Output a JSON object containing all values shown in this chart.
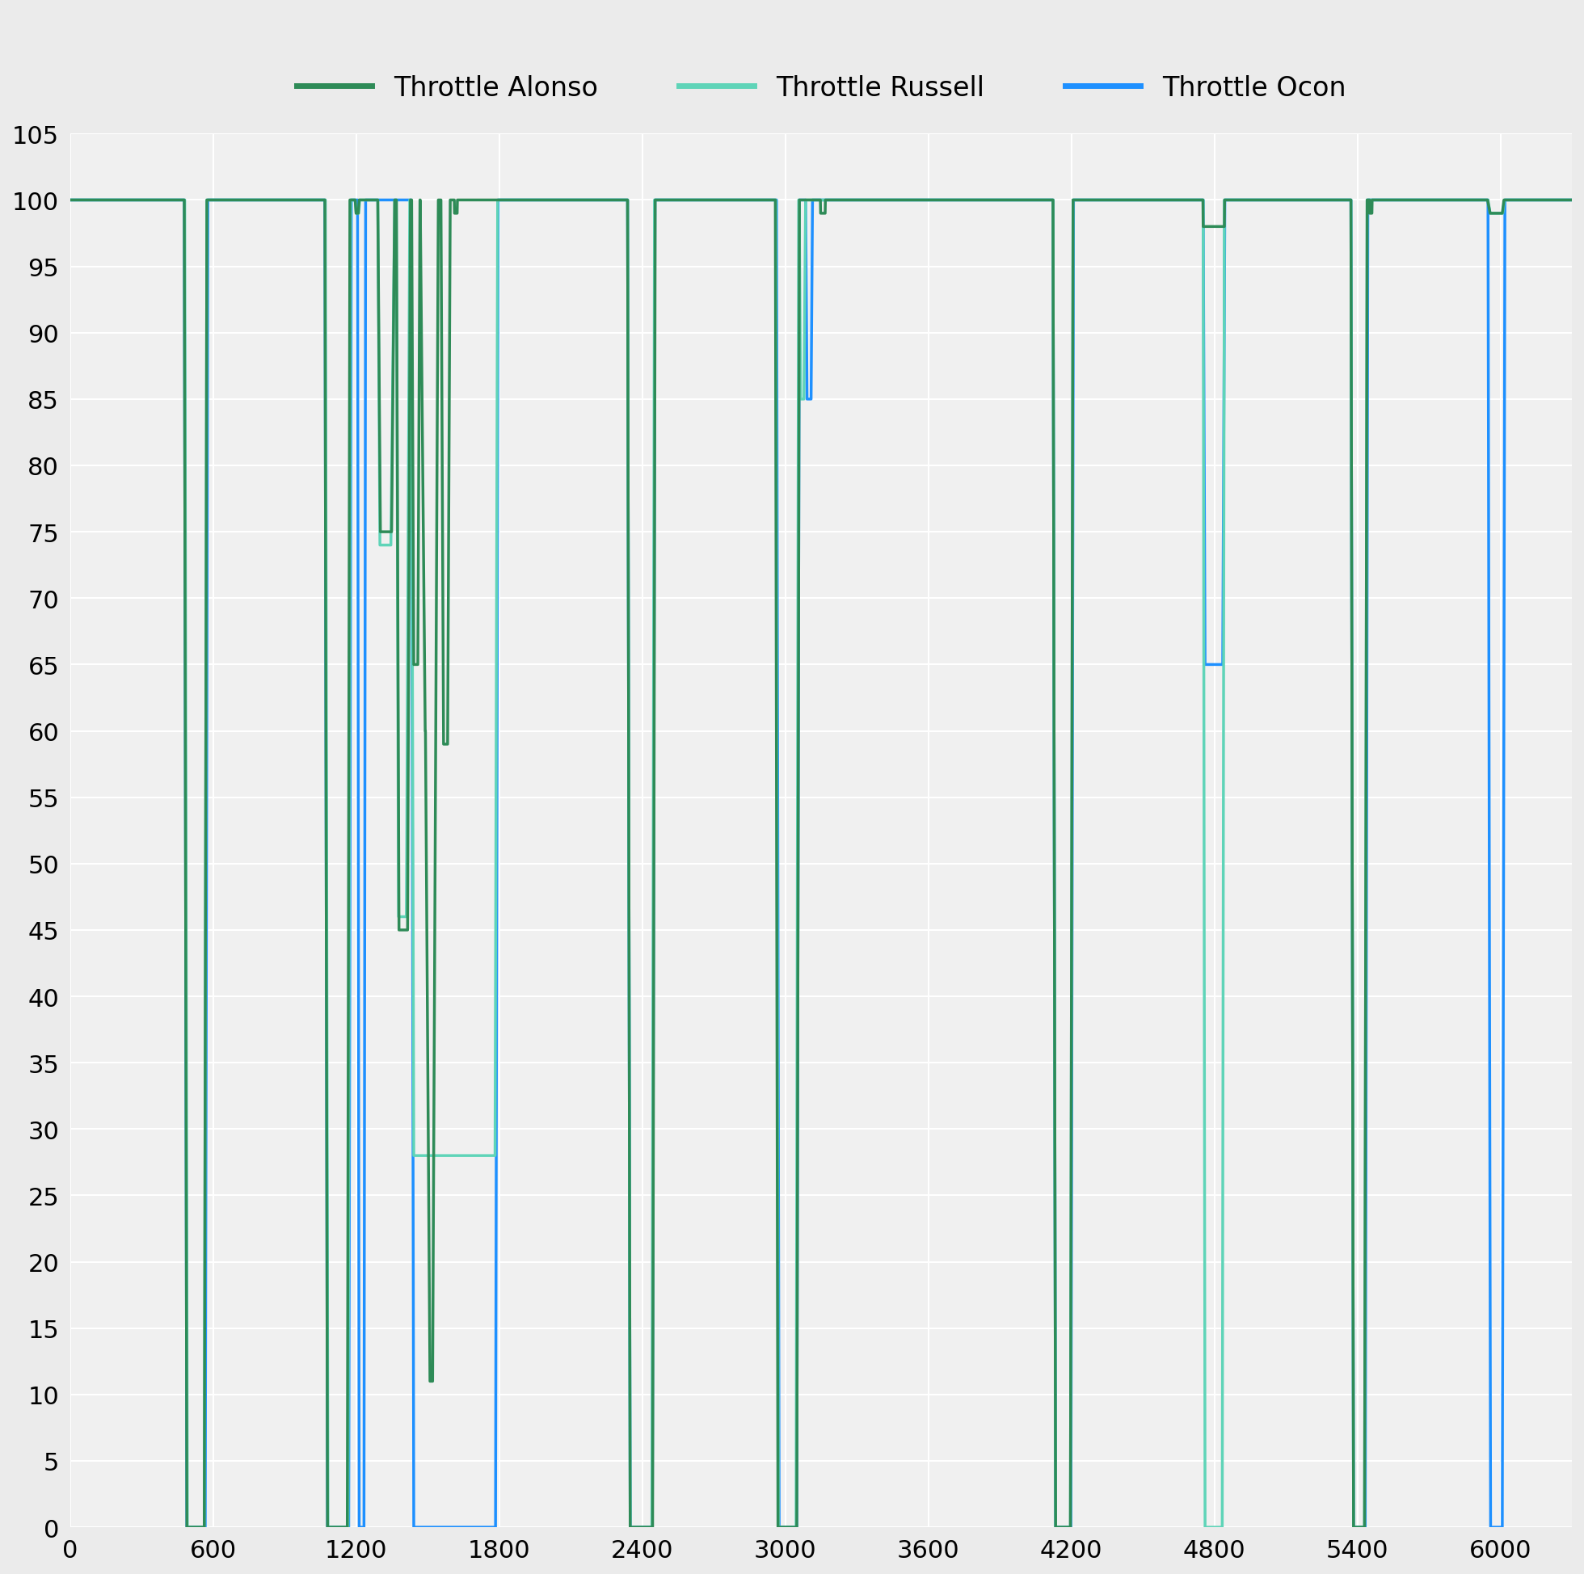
{
  "legend_labels": [
    "Throttle Alonso",
    "Throttle Russell",
    "Throttle Ocon"
  ],
  "colors": {
    "alonso": "#2e8b57",
    "russell": "#5fd4b8",
    "ocon": "#1e90ff"
  },
  "xlim": [
    0,
    6300
  ],
  "ylim": [
    0,
    105
  ],
  "xticks": [
    0,
    600,
    1200,
    1800,
    2400,
    3000,
    3600,
    4200,
    4800,
    5400,
    6000
  ],
  "yticks": [
    0,
    5,
    10,
    15,
    20,
    25,
    30,
    35,
    40,
    45,
    50,
    55,
    60,
    65,
    70,
    75,
    80,
    85,
    90,
    95,
    100,
    105
  ],
  "background_color": "#ebebeb",
  "plot_background": "#f0f0f0",
  "grid_color": "#ffffff",
  "line_width": 2.5,
  "font_size_legend": 24,
  "font_size_ticks": 22
}
